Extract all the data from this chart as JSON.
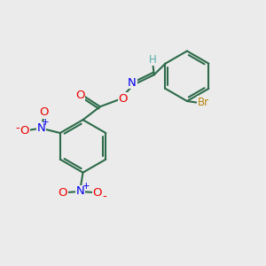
{
  "bg_color": "#ebebeb",
  "bond_color": "#2d6b4a",
  "bond_width": 1.5,
  "atom_colors": {
    "C": "#2d6b4a",
    "N": "#0000ee",
    "O": "#ee0000",
    "Br": "#b8860b",
    "H": "#5aabab"
  },
  "font_size": 8.5
}
